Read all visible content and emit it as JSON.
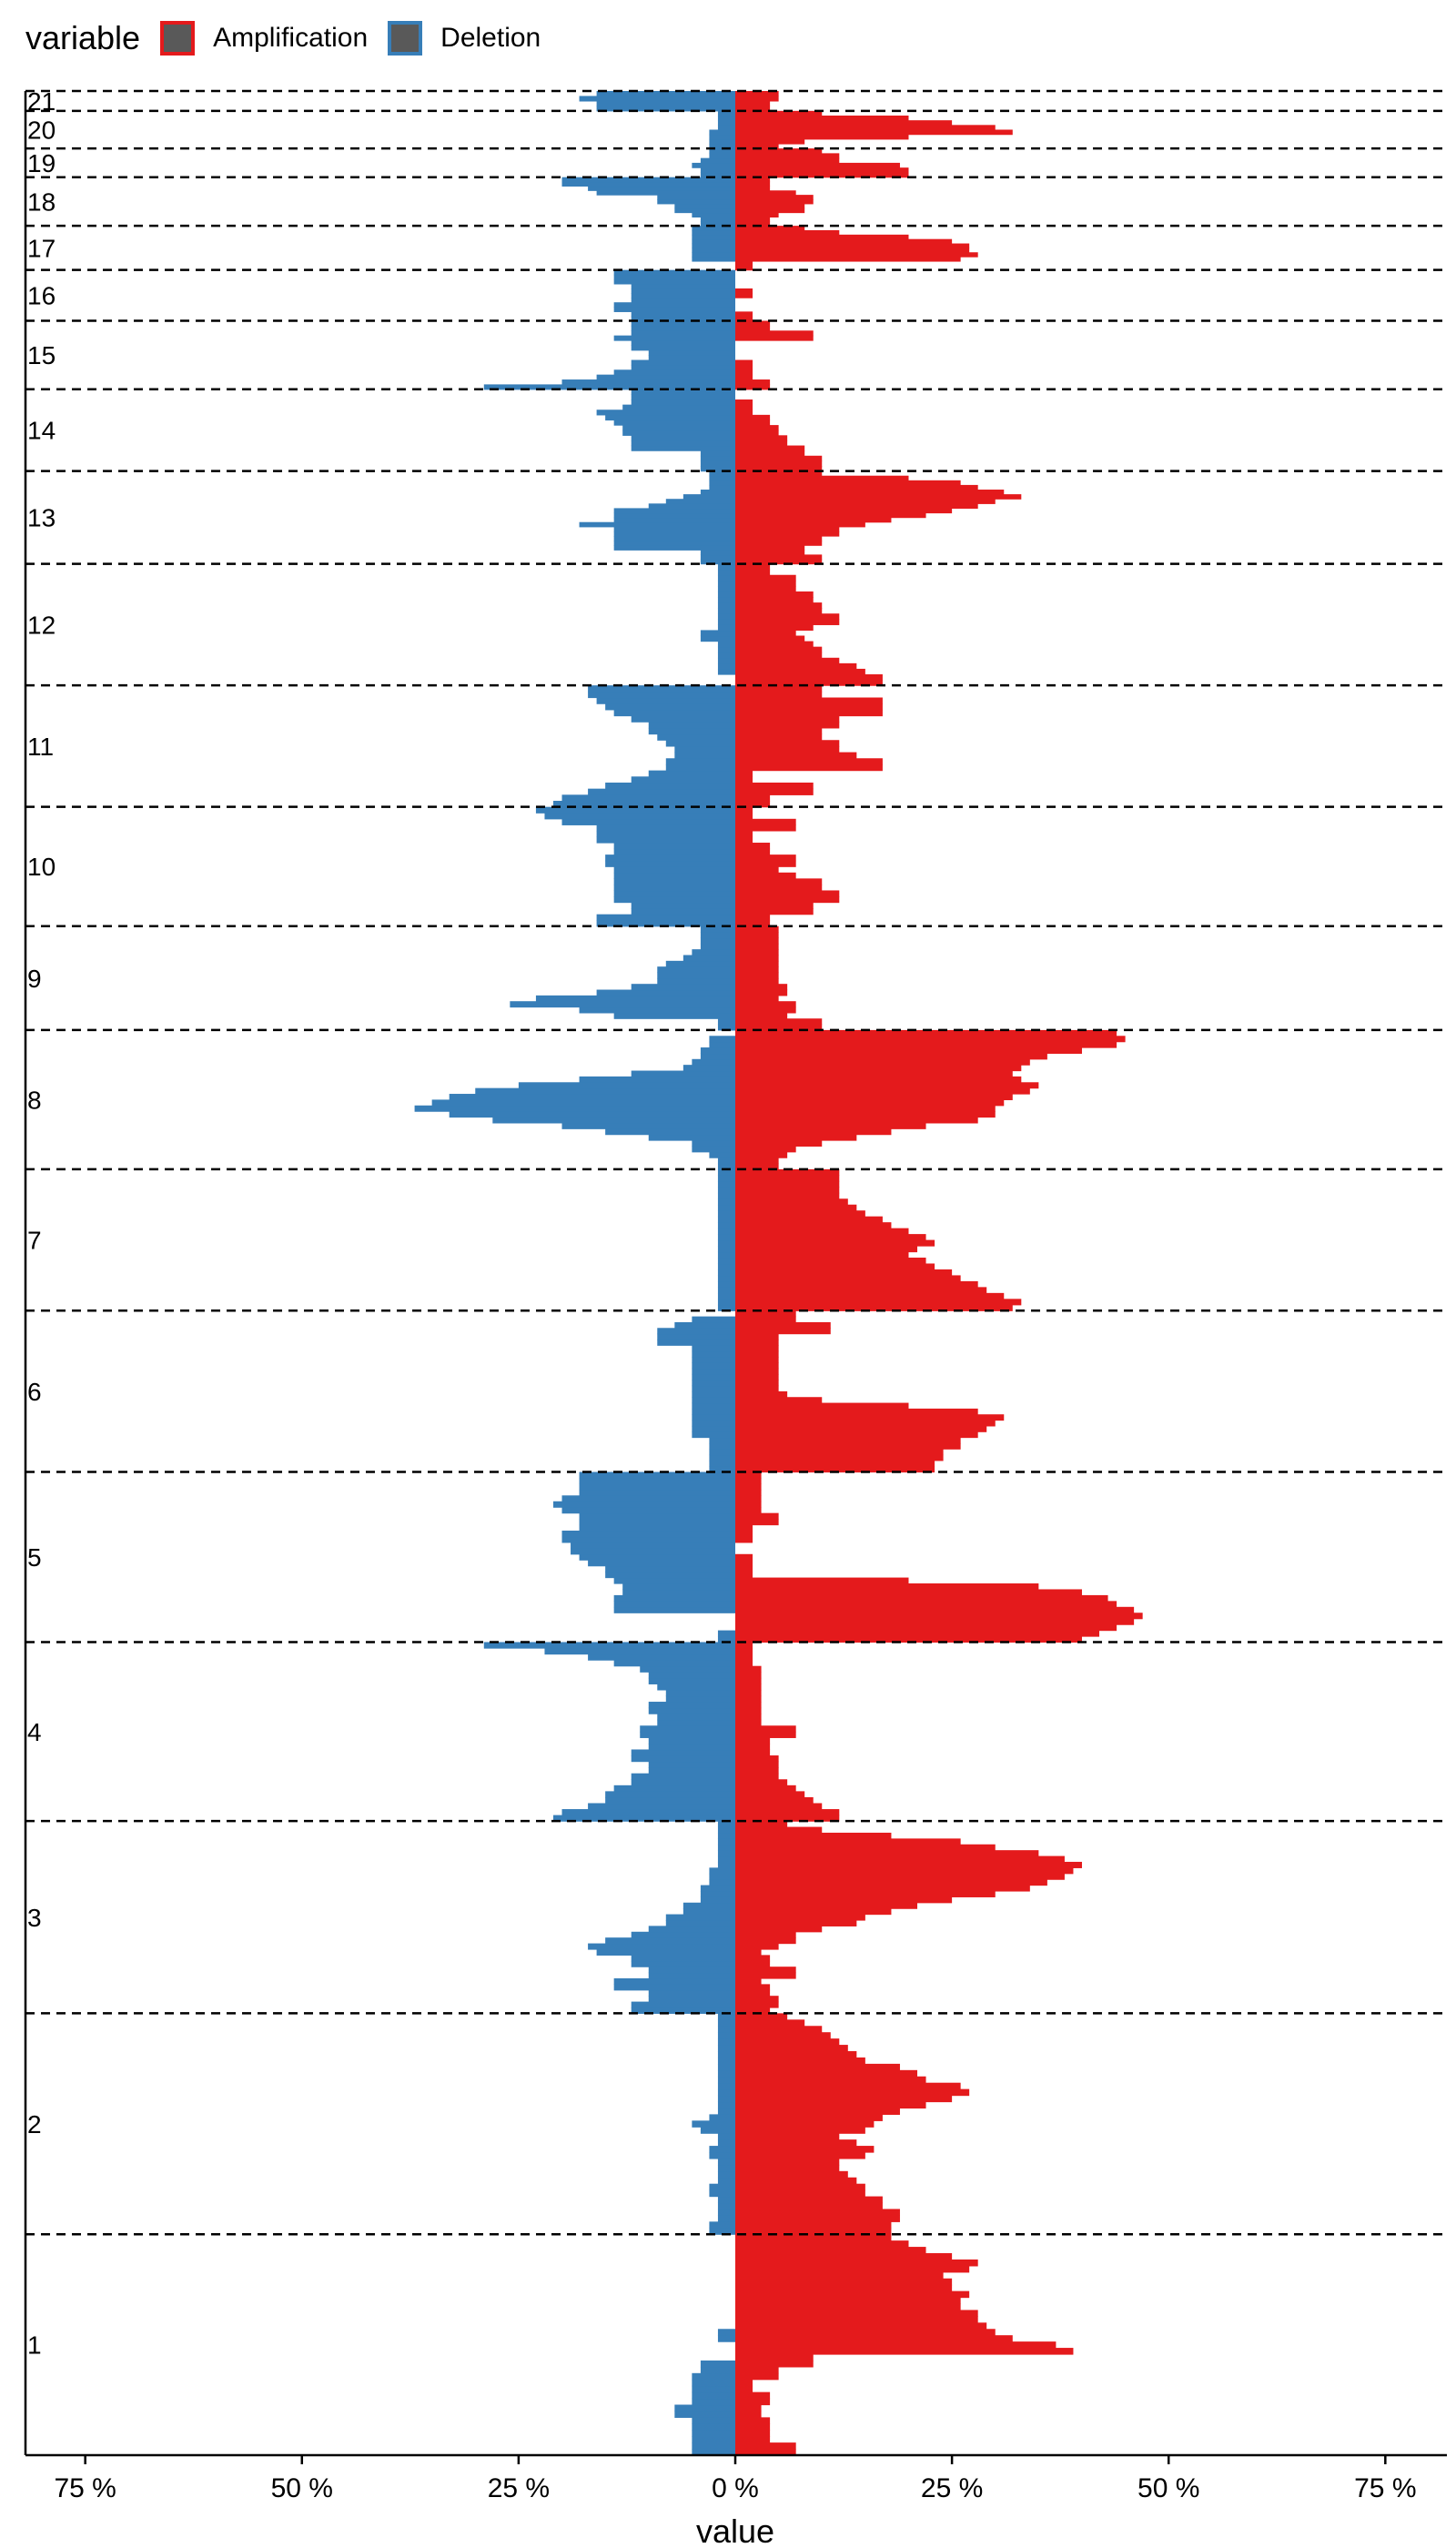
{
  "legend": {
    "title": "variable",
    "items": [
      {
        "label": "Amplification",
        "color": "#E41A1C"
      },
      {
        "label": "Deletion",
        "color": "#377EB8"
      }
    ]
  },
  "chart_data": {
    "type": "bar",
    "orientation": "horizontal",
    "xlabel": "value",
    "ylabel": "",
    "xlim": [
      -82,
      82
    ],
    "xticks": [
      -75,
      -50,
      -25,
      0,
      25,
      50,
      75
    ],
    "xtick_labels": [
      "75 %",
      "50 %",
      "25 %",
      "0 %",
      "25 %",
      "50 %",
      "75 %"
    ],
    "legend_position": "top-left",
    "grid": false,
    "chromosome_labels": [
      "1",
      "2",
      "3",
      "4",
      "5",
      "6",
      "7",
      "8",
      "9",
      "10",
      "11",
      "12",
      "13",
      "14",
      "15",
      "16",
      "17",
      "18",
      "19",
      "20",
      "21"
    ],
    "segments": [
      {
        "chrom": "1",
        "start": 0,
        "end": 100,
        "amplification": [
          7,
          7,
          4,
          4,
          4,
          4,
          3,
          3,
          4,
          4,
          2,
          2,
          5,
          5,
          9,
          9,
          39,
          37,
          32,
          30,
          29,
          28,
          28,
          26,
          26,
          27,
          25,
          25,
          24,
          27,
          28,
          25,
          22,
          20,
          18
        ],
        "deletion": [
          5,
          5,
          5,
          5,
          5,
          5,
          7,
          7,
          5,
          5,
          5,
          5,
          5,
          4,
          4,
          0,
          0,
          0,
          2,
          2,
          0,
          0,
          0,
          0,
          0,
          0,
          0,
          0,
          0,
          0,
          0,
          0,
          0,
          0,
          0
        ]
      },
      {
        "chrom": "2",
        "start": 100,
        "end": 200,
        "amplification": [
          18,
          18,
          19,
          19,
          17,
          17,
          15,
          15,
          14,
          13,
          12,
          12,
          15,
          16,
          14,
          12,
          15,
          16,
          17,
          19,
          22,
          25,
          27,
          26,
          22,
          21,
          19,
          15,
          14,
          13,
          12,
          11,
          10,
          8,
          6
        ],
        "deletion": [
          3,
          3,
          2,
          2,
          2,
          2,
          3,
          3,
          2,
          2,
          2,
          2,
          3,
          3,
          2,
          2,
          4,
          5,
          3,
          2,
          2,
          2,
          2,
          2,
          2,
          2,
          2,
          2,
          2,
          2,
          2,
          2,
          2,
          2,
          2
        ]
      },
      {
        "chrom": "3",
        "start": 200,
        "end": 287,
        "amplification": [
          4,
          5,
          5,
          4,
          4,
          3,
          7,
          7,
          4,
          4,
          3,
          5,
          7,
          7,
          10,
          14,
          15,
          18,
          21,
          25,
          30,
          34,
          36,
          38,
          39,
          40,
          38,
          35,
          30,
          26,
          18,
          10,
          6
        ],
        "deletion": [
          12,
          12,
          10,
          10,
          14,
          14,
          10,
          10,
          12,
          12,
          16,
          17,
          15,
          12,
          10,
          8,
          8,
          6,
          6,
          4,
          4,
          4,
          3,
          3,
          3,
          2,
          2,
          2,
          2,
          2,
          2,
          2,
          2
        ]
      },
      {
        "chrom": "4",
        "start": 287,
        "end": 368,
        "amplification": [
          12,
          12,
          10,
          9,
          8,
          7,
          6,
          5,
          5,
          5,
          5,
          4,
          4,
          4,
          7,
          7,
          3,
          3,
          3,
          3,
          3,
          3,
          3,
          3,
          3,
          3,
          2,
          2,
          2,
          2
        ],
        "deletion": [
          21,
          20,
          17,
          15,
          15,
          14,
          12,
          12,
          10,
          10,
          12,
          12,
          10,
          10,
          11,
          11,
          9,
          9,
          10,
          10,
          8,
          8,
          9,
          10,
          10,
          11,
          14,
          17,
          22,
          29
        ]
      },
      {
        "chrom": "5",
        "start": 368,
        "end": 445,
        "amplification": [
          40,
          42,
          44,
          46,
          47,
          46,
          44,
          43,
          40,
          35,
          20,
          2,
          2,
          2,
          2,
          0,
          0,
          2,
          2,
          2,
          5,
          5,
          3,
          3,
          3,
          3,
          3,
          3,
          3
        ],
        "deletion": [
          2,
          2,
          0,
          0,
          0,
          14,
          14,
          14,
          13,
          13,
          14,
          15,
          15,
          17,
          18,
          19,
          19,
          20,
          20,
          18,
          18,
          18,
          20,
          21,
          20,
          18,
          18,
          18,
          18
        ]
      },
      {
        "chrom": "6",
        "start": 445,
        "end": 518,
        "amplification": [
          23,
          23,
          24,
          24,
          26,
          26,
          28,
          29,
          30,
          31,
          28,
          20,
          10,
          6,
          5,
          5,
          5,
          5,
          5,
          5,
          5,
          5,
          5,
          5,
          11,
          11,
          7,
          7
        ],
        "deletion": [
          3,
          3,
          3,
          3,
          3,
          3,
          5,
          5,
          5,
          5,
          5,
          5,
          5,
          5,
          5,
          5,
          5,
          5,
          5,
          5,
          5,
          5,
          9,
          9,
          9,
          7,
          5,
          0
        ]
      },
      {
        "chrom": "7",
        "start": 518,
        "end": 582,
        "amplification": [
          32,
          33,
          31,
          29,
          28,
          26,
          25,
          23,
          22,
          20,
          21,
          23,
          22,
          20,
          18,
          17,
          15,
          14,
          13,
          12,
          12,
          12,
          12,
          12
        ],
        "deletion": [
          2,
          2,
          2,
          2,
          2,
          2,
          2,
          2,
          2,
          2,
          2,
          2,
          2,
          2,
          2,
          2,
          2,
          2,
          2,
          2,
          2,
          2,
          2,
          2
        ]
      },
      {
        "chrom": "8",
        "start": 582,
        "end": 645,
        "amplification": [
          5,
          5,
          6,
          7,
          10,
          14,
          18,
          22,
          28,
          30,
          30,
          31,
          32,
          34,
          35,
          33,
          32,
          33,
          34,
          36,
          40,
          44,
          45,
          44
        ],
        "deletion": [
          2,
          2,
          3,
          5,
          5,
          10,
          15,
          20,
          28,
          33,
          37,
          35,
          33,
          30,
          25,
          18,
          12,
          6,
          5,
          4,
          4,
          3,
          3,
          0
        ]
      },
      {
        "chrom": "9",
        "start": 645,
        "end": 692,
        "amplification": [
          10,
          10,
          6,
          7,
          7,
          5,
          6,
          6,
          5,
          5,
          5,
          5,
          5,
          5,
          5,
          5,
          5,
          5
        ],
        "deletion": [
          2,
          2,
          14,
          18,
          26,
          23,
          16,
          12,
          9,
          9,
          9,
          8,
          6,
          5,
          4,
          4,
          4,
          4
        ]
      },
      {
        "chrom": "10",
        "start": 692,
        "end": 746,
        "amplification": [
          4,
          4,
          9,
          9,
          12,
          12,
          10,
          10,
          7,
          5,
          7,
          7,
          4,
          4,
          2,
          2,
          7,
          7,
          2,
          2
        ],
        "deletion": [
          16,
          16,
          12,
          12,
          14,
          14,
          14,
          14,
          14,
          14,
          15,
          15,
          14,
          14,
          16,
          16,
          16,
          20,
          22,
          23
        ]
      },
      {
        "chrom": "11",
        "start": 746,
        "end": 801,
        "amplification": [
          4,
          4,
          9,
          9,
          2,
          2,
          17,
          17,
          14,
          12,
          12,
          10,
          10,
          12,
          12,
          17,
          17,
          17,
          10,
          10
        ],
        "deletion": [
          21,
          20,
          17,
          15,
          12,
          10,
          8,
          8,
          7,
          7,
          8,
          9,
          10,
          10,
          12,
          14,
          15,
          16,
          17,
          17
        ]
      },
      {
        "chrom": "12",
        "start": 801,
        "end": 856,
        "amplification": [
          17,
          17,
          15,
          14,
          12,
          10,
          10,
          9,
          8,
          7,
          9,
          12,
          12,
          10,
          10,
          9,
          9,
          7,
          7,
          7,
          4,
          4
        ],
        "deletion": [
          0,
          0,
          2,
          2,
          2,
          2,
          2,
          2,
          4,
          4,
          2,
          2,
          2,
          2,
          2,
          2,
          2,
          2,
          2,
          2,
          2,
          2
        ]
      },
      {
        "chrom": "13",
        "start": 856,
        "end": 898,
        "amplification": [
          10,
          10,
          8,
          8,
          10,
          10,
          12,
          12,
          15,
          18,
          22,
          25,
          28,
          30,
          33,
          31,
          28,
          26,
          20,
          10
        ],
        "deletion": [
          4,
          4,
          4,
          14,
          14,
          14,
          14,
          14,
          18,
          14,
          14,
          14,
          10,
          8,
          6,
          4,
          3,
          3,
          3,
          3
        ]
      },
      {
        "chrom": "14",
        "start": 898,
        "end": 935,
        "amplification": [
          10,
          10,
          10,
          8,
          8,
          6,
          6,
          5,
          5,
          4,
          4,
          2,
          2,
          2,
          0,
          0
        ],
        "deletion": [
          4,
          4,
          4,
          4,
          12,
          12,
          12,
          13,
          13,
          14,
          15,
          16,
          13,
          12,
          12,
          12
        ]
      },
      {
        "chrom": "15",
        "start": 935,
        "end": 966,
        "amplification": [
          4,
          4,
          2,
          2,
          2,
          2,
          0,
          0,
          0,
          0,
          9,
          9,
          4,
          4
        ],
        "deletion": [
          29,
          20,
          16,
          14,
          12,
          12,
          10,
          10,
          12,
          12,
          14,
          12,
          12,
          12
        ]
      },
      {
        "chrom": "16",
        "start": 966,
        "end": 989,
        "amplification": [
          2,
          2,
          0,
          0,
          0,
          2,
          2,
          0,
          0,
          0,
          0
        ],
        "deletion": [
          12,
          12,
          14,
          14,
          12,
          12,
          12,
          12,
          14,
          14,
          14
        ]
      },
      {
        "chrom": "17",
        "start": 989,
        "end": 1009,
        "amplification": [
          2,
          2,
          26,
          28,
          27,
          27,
          25,
          20,
          12,
          8
        ],
        "deletion": [
          0,
          0,
          5,
          5,
          5,
          5,
          5,
          5,
          5,
          5
        ]
      },
      {
        "chrom": "18",
        "start": 1009,
        "end": 1031,
        "amplification": [
          4,
          4,
          5,
          8,
          8,
          9,
          9,
          7,
          4,
          4,
          4
        ],
        "deletion": [
          4,
          4,
          5,
          7,
          7,
          9,
          9,
          16,
          17,
          20,
          20
        ]
      },
      {
        "chrom": "19",
        "start": 1031,
        "end": 1044,
        "amplification": [
          20,
          20,
          19,
          12,
          12,
          10
        ],
        "deletion": [
          4,
          4,
          5,
          4,
          3,
          3
        ]
      },
      {
        "chrom": "20",
        "start": 1044,
        "end": 1061,
        "amplification": [
          5,
          8,
          20,
          32,
          30,
          25,
          20,
          10
        ],
        "deletion": [
          3,
          3,
          3,
          3,
          2,
          2,
          2,
          2
        ]
      },
      {
        "chrom": "21",
        "start": 1061,
        "end": 1070,
        "amplification": [
          4,
          4,
          5,
          5
        ],
        "deletion": [
          16,
          16,
          18,
          16
        ]
      }
    ]
  }
}
